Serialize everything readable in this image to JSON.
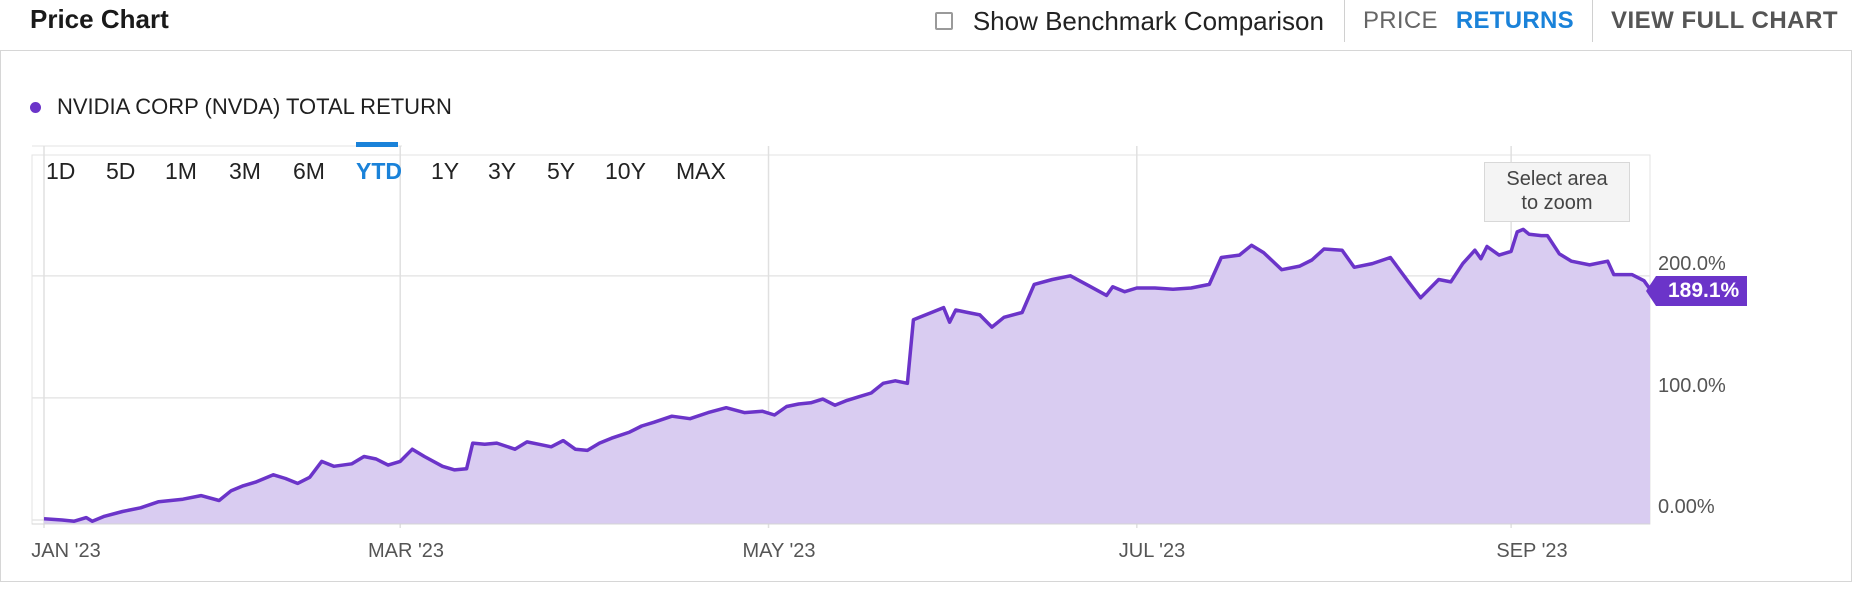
{
  "header": {
    "title": "Price Chart",
    "benchmark_label": "Show Benchmark Comparison",
    "benchmark_checked": false,
    "toggle_price": "PRICE",
    "toggle_returns": "RETURNS",
    "active_toggle": "RETURNS",
    "view_full_chart": "VIEW FULL CHART"
  },
  "legend": {
    "label": "NVIDIA CORP (NVDA) TOTAL RETURN"
  },
  "range_buttons": [
    "1D",
    "5D",
    "1M",
    "3M",
    "6M",
    "YTD",
    "1Y",
    "3Y",
    "5Y",
    "10Y",
    "MAX"
  ],
  "active_range": "YTD",
  "zoom_hint": {
    "line1": "Select area",
    "line2": "to zoom"
  },
  "current_value_label": "189.1%",
  "colors": {
    "series": "#6b34c9",
    "fill": "#d9ccf1",
    "accent": "#1a82d9"
  },
  "chart_data": {
    "type": "area",
    "title": "",
    "series": [
      {
        "name": "NVIDIA CORP (NVDA) TOTAL RETURN",
        "points": [
          [
            "2023-01-01",
            1
          ],
          [
            "2023-01-04",
            0
          ],
          [
            "2023-01-06",
            -1
          ],
          [
            "2023-01-08",
            2
          ],
          [
            "2023-01-09",
            -1
          ],
          [
            "2023-01-11",
            3
          ],
          [
            "2023-01-14",
            7
          ],
          [
            "2023-01-17",
            10
          ],
          [
            "2023-01-20",
            15
          ],
          [
            "2023-01-24",
            17
          ],
          [
            "2023-01-27",
            20
          ],
          [
            "2023-01-30",
            16
          ],
          [
            "2023-02-01",
            24
          ],
          [
            "2023-02-03",
            28
          ],
          [
            "2023-02-05",
            31
          ],
          [
            "2023-02-08",
            37
          ],
          [
            "2023-02-10",
            34
          ],
          [
            "2023-02-12",
            30
          ],
          [
            "2023-02-14",
            35
          ],
          [
            "2023-02-16",
            48
          ],
          [
            "2023-02-18",
            44
          ],
          [
            "2023-02-21",
            46
          ],
          [
            "2023-02-23",
            52
          ],
          [
            "2023-02-25",
            50
          ],
          [
            "2023-02-27",
            45
          ],
          [
            "2023-03-01",
            48
          ],
          [
            "2023-03-03",
            58
          ],
          [
            "2023-03-05",
            52
          ],
          [
            "2023-03-08",
            44
          ],
          [
            "2023-03-10",
            41
          ],
          [
            "2023-03-12",
            42
          ],
          [
            "2023-03-13",
            63
          ],
          [
            "2023-03-15",
            62
          ],
          [
            "2023-03-17",
            63
          ],
          [
            "2023-03-20",
            58
          ],
          [
            "2023-03-22",
            64
          ],
          [
            "2023-03-24",
            62
          ],
          [
            "2023-03-26",
            60
          ],
          [
            "2023-03-28",
            65
          ],
          [
            "2023-03-30",
            58
          ],
          [
            "2023-04-01",
            57
          ],
          [
            "2023-04-03",
            63
          ],
          [
            "2023-04-05",
            67
          ],
          [
            "2023-04-08",
            72
          ],
          [
            "2023-04-10",
            77
          ],
          [
            "2023-04-12",
            80
          ],
          [
            "2023-04-15",
            85
          ],
          [
            "2023-04-18",
            83
          ],
          [
            "2023-04-21",
            88
          ],
          [
            "2023-04-24",
            92
          ],
          [
            "2023-04-27",
            88
          ],
          [
            "2023-04-30",
            89
          ],
          [
            "2023-05-02",
            86
          ],
          [
            "2023-05-04",
            93
          ],
          [
            "2023-05-06",
            95
          ],
          [
            "2023-05-08",
            96
          ],
          [
            "2023-05-10",
            99
          ],
          [
            "2023-05-12",
            94
          ],
          [
            "2023-05-14",
            98
          ],
          [
            "2023-05-16",
            101
          ],
          [
            "2023-05-18",
            104
          ],
          [
            "2023-05-20",
            112
          ],
          [
            "2023-05-22",
            114
          ],
          [
            "2023-05-24",
            112
          ],
          [
            "2023-05-25",
            164
          ],
          [
            "2023-05-28",
            170
          ],
          [
            "2023-05-30",
            174
          ],
          [
            "2023-05-31",
            162
          ],
          [
            "2023-06-01",
            172
          ],
          [
            "2023-06-03",
            170
          ],
          [
            "2023-06-05",
            168
          ],
          [
            "2023-06-07",
            158
          ],
          [
            "2023-06-09",
            166
          ],
          [
            "2023-06-12",
            170
          ],
          [
            "2023-06-14",
            193
          ],
          [
            "2023-06-17",
            197
          ],
          [
            "2023-06-20",
            200
          ],
          [
            "2023-06-23",
            192
          ],
          [
            "2023-06-26",
            184
          ],
          [
            "2023-06-27",
            191
          ],
          [
            "2023-06-29",
            187
          ],
          [
            "2023-07-01",
            190
          ],
          [
            "2023-07-04",
            190
          ],
          [
            "2023-07-07",
            189
          ],
          [
            "2023-07-10",
            190
          ],
          [
            "2023-07-13",
            193
          ],
          [
            "2023-07-15",
            215
          ],
          [
            "2023-07-18",
            217
          ],
          [
            "2023-07-20",
            225
          ],
          [
            "2023-07-22",
            219
          ],
          [
            "2023-07-25",
            205
          ],
          [
            "2023-07-28",
            208
          ],
          [
            "2023-07-30",
            213
          ],
          [
            "2023-08-01",
            222
          ],
          [
            "2023-08-04",
            221
          ],
          [
            "2023-08-06",
            207
          ],
          [
            "2023-08-09",
            210
          ],
          [
            "2023-08-12",
            215
          ],
          [
            "2023-08-15",
            195
          ],
          [
            "2023-08-17",
            182
          ],
          [
            "2023-08-20",
            197
          ],
          [
            "2023-08-22",
            195
          ],
          [
            "2023-08-24",
            210
          ],
          [
            "2023-08-26",
            221
          ],
          [
            "2023-08-27",
            214
          ],
          [
            "2023-08-28",
            224
          ],
          [
            "2023-08-30",
            217
          ],
          [
            "2023-09-01",
            220
          ],
          [
            "2023-09-02",
            236
          ],
          [
            "2023-09-03",
            238
          ],
          [
            "2023-09-04",
            234
          ],
          [
            "2023-09-06",
            233
          ],
          [
            "2023-09-07",
            233
          ],
          [
            "2023-09-09",
            218
          ],
          [
            "2023-09-11",
            212
          ],
          [
            "2023-09-14",
            209
          ],
          [
            "2023-09-17",
            212
          ],
          [
            "2023-09-18",
            201
          ],
          [
            "2023-09-21",
            201
          ],
          [
            "2023-09-23",
            196
          ],
          [
            "2023-09-24",
            189.1
          ]
        ]
      }
    ],
    "x_axis": {
      "type": "date",
      "range": [
        "2023-01-01",
        "2023-09-24"
      ],
      "ticks": [
        {
          "date": "2023-01-01",
          "label": "JAN '23"
        },
        {
          "date": "2023-03-01",
          "label": "MAR '23"
        },
        {
          "date": "2023-05-01",
          "label": "MAY '23"
        },
        {
          "date": "2023-07-01",
          "label": "JUL '23"
        },
        {
          "date": "2023-09-01",
          "label": "SEP '23"
        }
      ]
    },
    "y_axis": {
      "range": [
        0,
        300
      ],
      "ticks": [
        {
          "value": 0,
          "label": "0.00%"
        },
        {
          "value": 100,
          "label": "100.0%"
        },
        {
          "value": 200,
          "label": "200.0%"
        }
      ]
    },
    "grid": true,
    "legend_position": "top-left"
  }
}
